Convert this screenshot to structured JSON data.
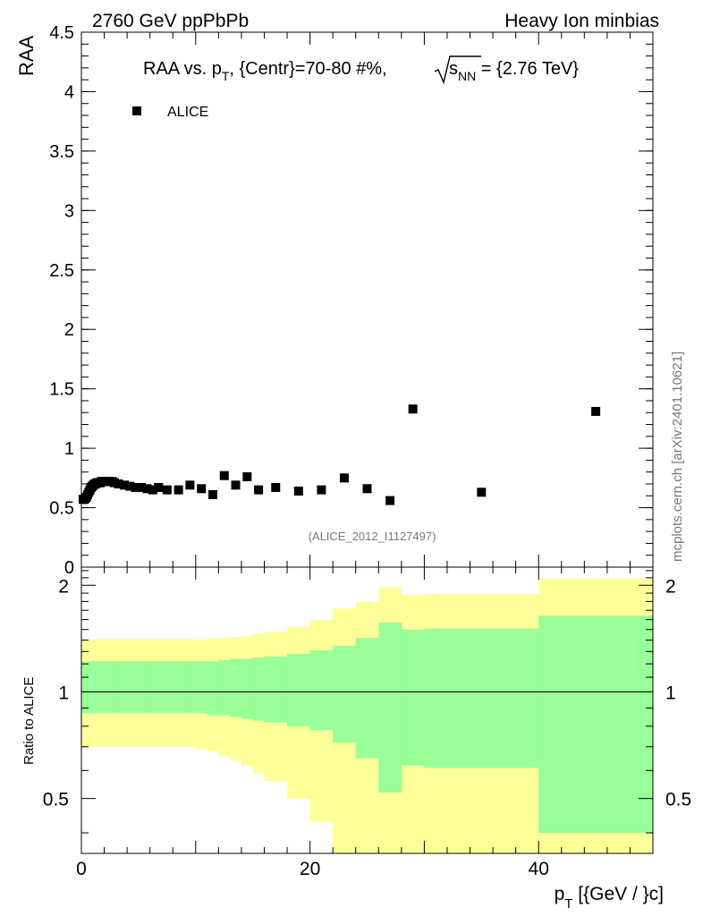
{
  "header": {
    "left": "2760 GeV ppPbPb",
    "right": "Heavy Ion minbias"
  },
  "chart_data": [
    {
      "type": "scatter",
      "panel": "main",
      "title": {
        "prefix": "RAA vs. p",
        "sub_t": "T",
        "mid": ", {Centr}=70-80 #%, ",
        "s": "s",
        "sub_nn": "NN",
        "suffix": " = {2.76 TeV}"
      },
      "ylabel": "RAA",
      "xlim": [
        0,
        50
      ],
      "ylim": [
        0,
        4.5
      ],
      "yticks": [
        0,
        0.5,
        1,
        1.5,
        2,
        2.5,
        3,
        3.5,
        4,
        4.5
      ],
      "ytick_labels": [
        "0",
        "0.5",
        "1",
        "1.5",
        "2",
        "2.5",
        "3",
        "3.5",
        "4",
        "4.5"
      ],
      "legend": {
        "label": "ALICE",
        "position": "top-left"
      },
      "annotation": "(ALICE_2012_I1127497)",
      "series": [
        {
          "name": "ALICE",
          "x": [
            0.15,
            0.25,
            0.35,
            0.45,
            0.55,
            0.65,
            0.75,
            0.85,
            0.95,
            1.05,
            1.15,
            1.25,
            1.35,
            1.45,
            1.55,
            1.65,
            1.75,
            1.85,
            1.95,
            2.1,
            2.3,
            2.5,
            2.7,
            2.9,
            3.25,
            3.75,
            4.25,
            4.75,
            5.25,
            5.75,
            6.25,
            6.75,
            7.5,
            8.5,
            9.5,
            10.5,
            11.5,
            12.5,
            13.5,
            14.5,
            15.5,
            17,
            19,
            21,
            23,
            25,
            27,
            29,
            35,
            45
          ],
          "y": [
            0.57,
            0.57,
            0.58,
            0.59,
            0.61,
            0.63,
            0.65,
            0.67,
            0.68,
            0.69,
            0.7,
            0.7,
            0.71,
            0.71,
            0.71,
            0.71,
            0.72,
            0.72,
            0.72,
            0.72,
            0.72,
            0.72,
            0.72,
            0.71,
            0.7,
            0.69,
            0.68,
            0.67,
            0.67,
            0.66,
            0.65,
            0.67,
            0.65,
            0.65,
            0.69,
            0.66,
            0.61,
            0.77,
            0.69,
            0.76,
            0.65,
            0.67,
            0.64,
            0.65,
            0.75,
            0.66,
            0.56,
            1.33,
            0.63,
            1.31
          ]
        }
      ]
    },
    {
      "type": "area",
      "panel": "ratio",
      "ylabel": "Ratio to ALICE",
      "xlabel": "p_T [{GeV / }c]",
      "xlabel_parts": {
        "p": "p",
        "sub": "T",
        "rest": " [{GeV / }c]"
      },
      "xlim": [
        0,
        50
      ],
      "ylim": [
        0.35,
        2.25
      ],
      "yticks": [
        0.5,
        1,
        2
      ],
      "ytick_labels": [
        "0.5",
        "1",
        "2"
      ],
      "xticks": [
        0,
        20,
        40
      ],
      "xtick_labels": [
        "0",
        "20",
        "40"
      ],
      "reference_line": 1,
      "bands": {
        "x_edges": [
          0,
          1,
          2,
          3,
          4,
          5,
          6,
          7,
          8,
          9,
          10,
          11,
          12,
          13,
          14,
          15,
          16,
          18,
          20,
          22,
          24,
          26,
          28,
          30,
          40,
          50
        ],
        "outer_hi": [
          1.4,
          1.41,
          1.41,
          1.41,
          1.41,
          1.41,
          1.41,
          1.41,
          1.41,
          1.41,
          1.41,
          1.42,
          1.42,
          1.43,
          1.44,
          1.46,
          1.48,
          1.53,
          1.6,
          1.72,
          1.8,
          1.98,
          1.88,
          1.89,
          2.09
        ],
        "outer_lo": [
          0.7,
          0.7,
          0.7,
          0.7,
          0.7,
          0.7,
          0.7,
          0.7,
          0.7,
          0.7,
          0.69,
          0.68,
          0.66,
          0.64,
          0.62,
          0.59,
          0.56,
          0.5,
          0.43,
          0.35,
          0.3,
          0.3,
          0.3,
          0.3,
          0.35
        ],
        "inner_hi": [
          1.22,
          1.22,
          1.22,
          1.22,
          1.22,
          1.22,
          1.22,
          1.22,
          1.22,
          1.22,
          1.22,
          1.22,
          1.23,
          1.24,
          1.24,
          1.25,
          1.26,
          1.28,
          1.31,
          1.35,
          1.42,
          1.57,
          1.5,
          1.51,
          1.64
        ],
        "inner_lo": [
          0.87,
          0.87,
          0.87,
          0.87,
          0.87,
          0.87,
          0.87,
          0.87,
          0.87,
          0.87,
          0.87,
          0.86,
          0.86,
          0.85,
          0.84,
          0.83,
          0.82,
          0.8,
          0.78,
          0.72,
          0.65,
          0.52,
          0.62,
          0.61,
          0.4
        ]
      },
      "colors": {
        "outer": "#ffff99",
        "inner": "#99ff99",
        "line": "#000000"
      }
    }
  ],
  "watermark": "mcplots.cern.ch [arXiv:2401.10621]"
}
